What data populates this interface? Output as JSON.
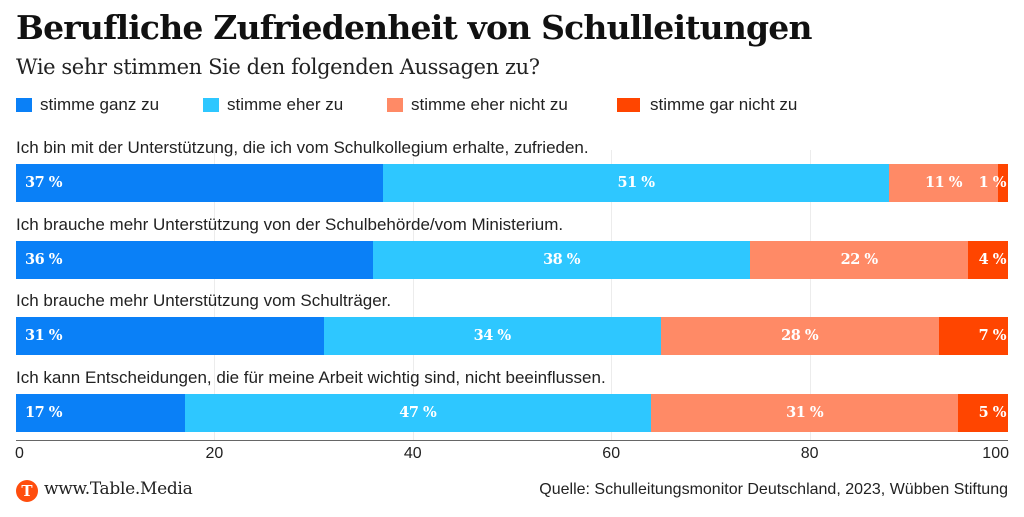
{
  "header": {
    "title": "Berufliche Zufriedenheit von Schulleitungen",
    "subtitle": "Wie sehr stimmen Sie den folgenden Aussagen zu?"
  },
  "legend": [
    {
      "label": "stimme ganz zu",
      "color": "#0a80f7"
    },
    {
      "label": "stimme eher zu",
      "color": "#2ec7ff"
    },
    {
      "label": "stimme eher nicht zu",
      "color": "#ff8a66"
    },
    {
      "label": "stimme gar nicht zu",
      "color": "#ff4500"
    }
  ],
  "chart_data": {
    "type": "bar",
    "orientation": "horizontal",
    "stacked": true,
    "title": "Berufliche Zufriedenheit von Schulleitungen",
    "subtitle": "Wie sehr stimmen Sie den folgenden Aussagen zu?",
    "categories": [
      "Ich bin mit der Unterstützung, die ich vom Schulkollegium erhalte, zufrieden.",
      "Ich brauche mehr Unterstützung von der Schulbehörde/vom Ministerium.",
      "Ich brauche mehr Unterstützung vom Schulträger.",
      "Ich kann Entscheidungen, die für meine Arbeit wichtig sind, nicht beeinflussen."
    ],
    "series": [
      {
        "name": "stimme ganz zu",
        "color": "#0a80f7",
        "values": [
          37,
          36,
          31,
          17
        ]
      },
      {
        "name": "stimme eher zu",
        "color": "#2ec7ff",
        "values": [
          51,
          38,
          34,
          47
        ]
      },
      {
        "name": "stimme eher nicht zu",
        "color": "#ff8a66",
        "values": [
          11,
          22,
          28,
          31
        ]
      },
      {
        "name": "stimme gar nicht zu",
        "color": "#ff4500",
        "values": [
          1,
          4,
          7,
          5
        ]
      }
    ],
    "value_suffix": " %",
    "xlim": [
      0,
      100
    ],
    "xticks": [
      0,
      20,
      40,
      60,
      80,
      100
    ],
    "xlabel": "",
    "ylabel": "",
    "grid": true,
    "legend_position": "top-left"
  },
  "footer": {
    "logo_letter": "T",
    "site": "www.Table.Media",
    "source": "Quelle: Schulleitungsmonitor Deutschland, 2023, Wübben Stiftung"
  }
}
